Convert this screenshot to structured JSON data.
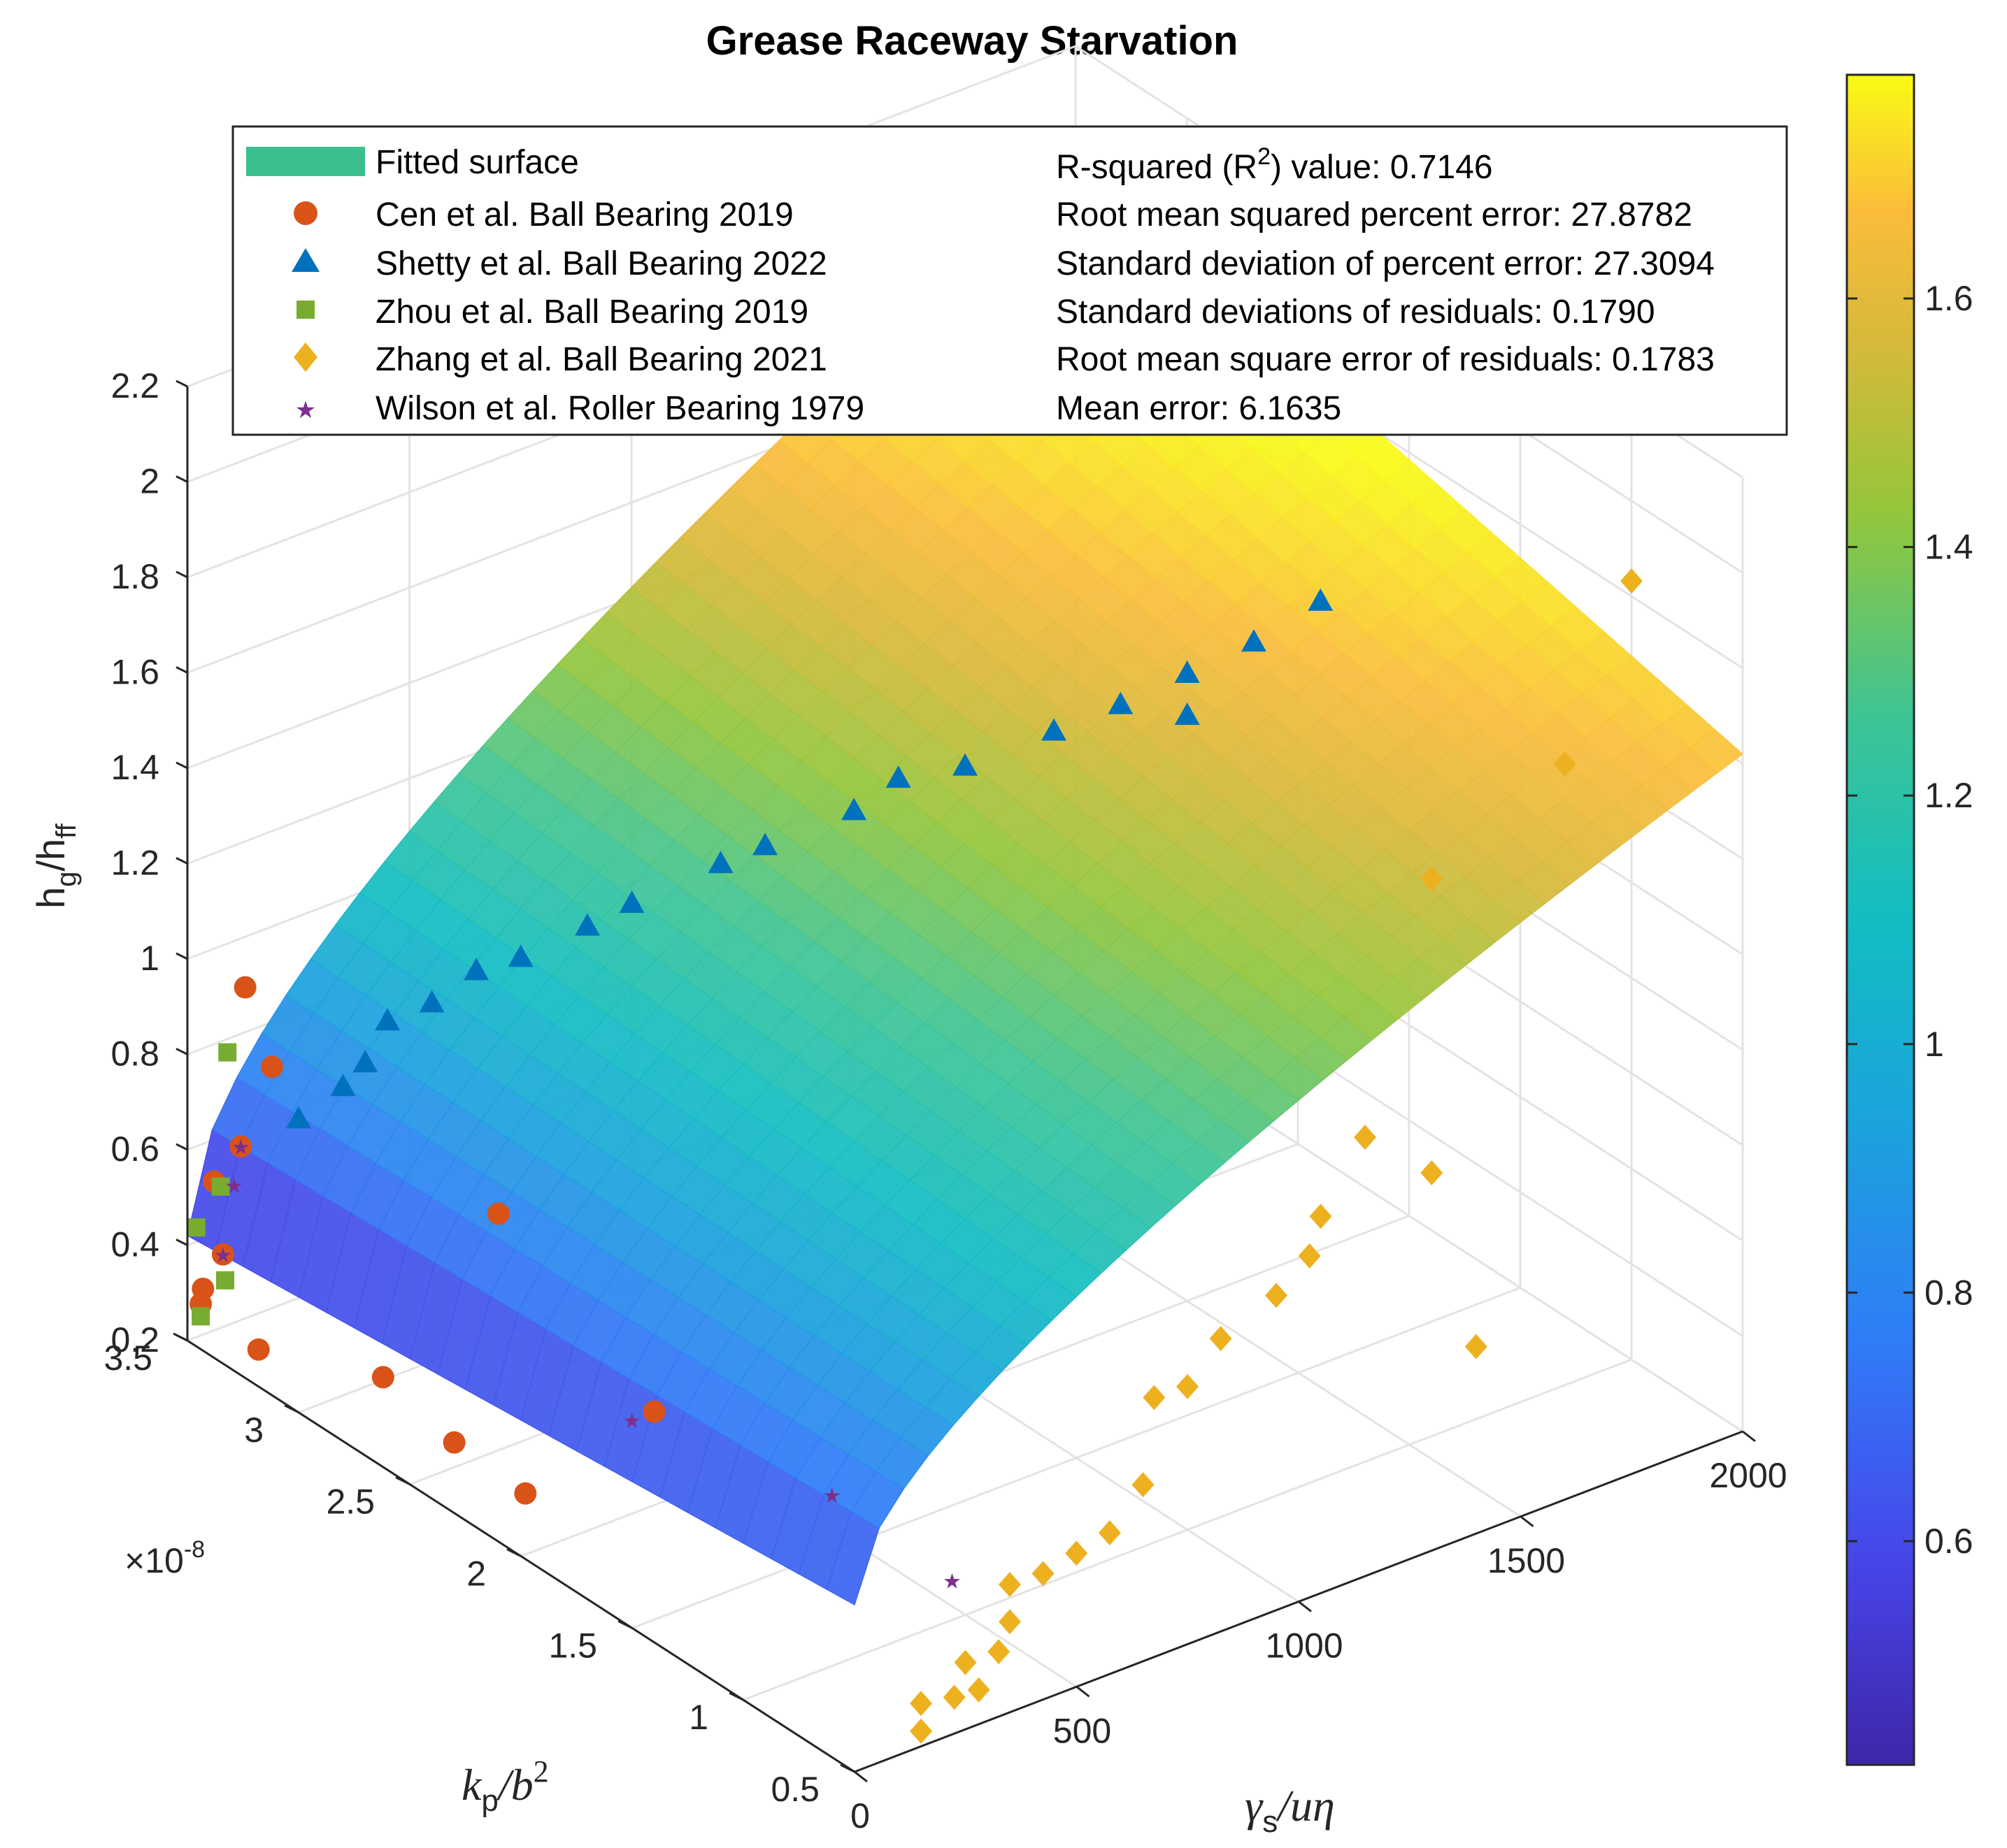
{
  "chart_data": {
    "type": "scatter",
    "title": "Grease Raceway Starvation",
    "zlabel": "h_g/h_ff",
    "xlabel": "k_p/b^2",
    "ylabel": "γ_s/uη",
    "x_exponent_label": "×10",
    "x_exponent_power": "-8",
    "z_ticks": [
      "0.2",
      "0.4",
      "0.6",
      "0.8",
      "1",
      "1.2",
      "1.4",
      "1.6",
      "1.8",
      "2",
      "2.2"
    ],
    "x_ticks": [
      "3.5",
      "3",
      "2.5",
      "2",
      "1.5",
      "1",
      "0.5"
    ],
    "y_ticks": [
      "0",
      "500",
      "1000",
      "1500",
      "2000"
    ],
    "zlim": [
      0.2,
      2.2
    ],
    "xlim": [
      0.5,
      3.5
    ],
    "ylim": [
      0,
      2000
    ],
    "colorbar": {
      "ticks": [
        "0.6",
        "0.8",
        "1",
        "1.2",
        "1.4",
        "1.6"
      ],
      "range": [
        0.42,
        1.78
      ],
      "colormap": "parula"
    },
    "grid": true,
    "legend_position": "top",
    "legend": [
      {
        "label": "Fitted surface",
        "marker": "patch",
        "color": "#3bbf8f"
      },
      {
        "label": "Cen et al. Ball Bearing 2019",
        "marker": "circle",
        "color": "#d95319"
      },
      {
        "label": "Shetty et al. Ball Bearing 2022",
        "marker": "triangle",
        "color": "#0072bd"
      },
      {
        "label": "Zhou et al. Ball Bearing 2019",
        "marker": "square",
        "color": "#77ac30"
      },
      {
        "label": "Zhang et al. Ball Bearing 2021",
        "marker": "diamond",
        "color": "#edb120"
      },
      {
        "label": "Wilson et al. Roller Bearing 1979",
        "marker": "star",
        "color": "#7e2f8e"
      }
    ],
    "stats_prefix": "R-squared (R",
    "stats_sup": "2",
    "stats_suffix": ") value: 0.7146",
    "stats": [
      "Root mean squared percent error: 27.8782",
      "Standard deviation of percent error: 27.3094",
      "Standard deviations of residuals: 0.1790",
      "Root mean square error of residuals: 0.1783",
      "Mean error: 6.1635"
    ],
    "surface": {
      "corners": {
        "x3.5_y0": 0.42,
        "x0.5_y0": 0.55,
        "x3.5_y2000": 1.95,
        "x0.5_y2000": 1.62
      }
    },
    "series": [
      {
        "name": "Cen et al. Ball Bearing 2019",
        "points": [
          [
            3.3,
            30,
            0.99
          ],
          [
            3.2,
            40,
            0.85
          ],
          [
            3.3,
            20,
            0.66
          ],
          [
            3.4,
            10,
            0.56
          ],
          [
            3.4,
            30,
            0.4
          ],
          [
            3.45,
            10,
            0.32
          ],
          [
            3.45,
            5,
            0.29
          ],
          [
            3.3,
            60,
            0.22
          ],
          [
            2.7,
            40,
            0.35
          ],
          [
            2.4,
            50,
            0.3
          ],
          [
            2.1,
            60,
            0.28
          ],
          [
            2.7,
            300,
            0.6
          ],
          [
            2.2,
            400,
            0.3
          ]
        ]
      },
      {
        "name": "Shetty et al. Ball Bearing 2022",
        "points": [
          [
            3.2,
            100,
            0.72
          ],
          [
            3.1,
            150,
            0.8
          ],
          [
            3.0,
            150,
            0.88
          ],
          [
            3.0,
            200,
            0.95
          ],
          [
            2.9,
            250,
            1.0
          ],
          [
            2.8,
            300,
            1.08
          ],
          [
            2.7,
            350,
            1.12
          ],
          [
            2.6,
            450,
            1.18
          ],
          [
            2.5,
            500,
            1.24
          ],
          [
            2.4,
            650,
            1.3
          ],
          [
            2.3,
            700,
            1.35
          ],
          [
            2.2,
            850,
            1.4
          ],
          [
            2.1,
            900,
            1.48
          ],
          [
            2.0,
            1000,
            1.5
          ],
          [
            1.9,
            1150,
            1.55
          ],
          [
            1.8,
            1250,
            1.6
          ],
          [
            1.7,
            1350,
            1.66
          ],
          [
            1.6,
            1450,
            1.72
          ],
          [
            1.5,
            1550,
            1.8
          ],
          [
            1.6,
            1300,
            1.62
          ]
        ]
      },
      {
        "name": "Zhou et al. Ball Bearing 2019",
        "points": [
          [
            3.4,
            40,
            0.82
          ],
          [
            3.45,
            50,
            0.52
          ],
          [
            3.5,
            20,
            0.43
          ],
          [
            3.45,
            60,
            0.32
          ],
          [
            3.5,
            30,
            0.24
          ]
        ]
      },
      {
        "name": "Zhang et al. Ball Bearing 2021",
        "points": [
          [
            0.9,
            1950,
            1.88
          ],
          [
            0.9,
            1800,
            1.55
          ],
          [
            1.1,
            1600,
            1.32
          ],
          [
            1.0,
            1400,
            0.88
          ],
          [
            0.9,
            1500,
            0.8
          ],
          [
            1.0,
            1300,
            0.75
          ],
          [
            0.95,
            1250,
            0.7
          ],
          [
            1.0,
            1200,
            0.62
          ],
          [
            1.05,
            1100,
            0.55
          ],
          [
            1.0,
            1000,
            0.5
          ],
          [
            1.05,
            950,
            0.48
          ],
          [
            0.9,
            1600,
            0.4
          ],
          [
            1.0,
            900,
            0.33
          ],
          [
            0.95,
            800,
            0.28
          ],
          [
            1.0,
            750,
            0.24
          ],
          [
            1.05,
            700,
            0.2
          ],
          [
            1.1,
            650,
            0.18
          ],
          [
            1.0,
            600,
            0.15
          ],
          [
            0.95,
            550,
            0.12
          ],
          [
            1.0,
            500,
            0.1
          ],
          [
            0.9,
            480,
            0.08
          ],
          [
            0.95,
            450,
            0.06
          ],
          [
            1.0,
            400,
            0.05
          ],
          [
            0.9,
            350,
            0.04
          ]
        ]
      },
      {
        "name": "Wilson et al. Roller Bearing 1979",
        "points": [
          [
            3.3,
            20,
            0.66
          ],
          [
            3.35,
            30,
            0.56
          ],
          [
            3.4,
            30,
            0.4
          ],
          [
            2.2,
            350,
            0.3
          ],
          [
            1.6,
            500,
            0.27
          ],
          [
            0.9,
            420,
            0.33
          ]
        ]
      }
    ]
  }
}
